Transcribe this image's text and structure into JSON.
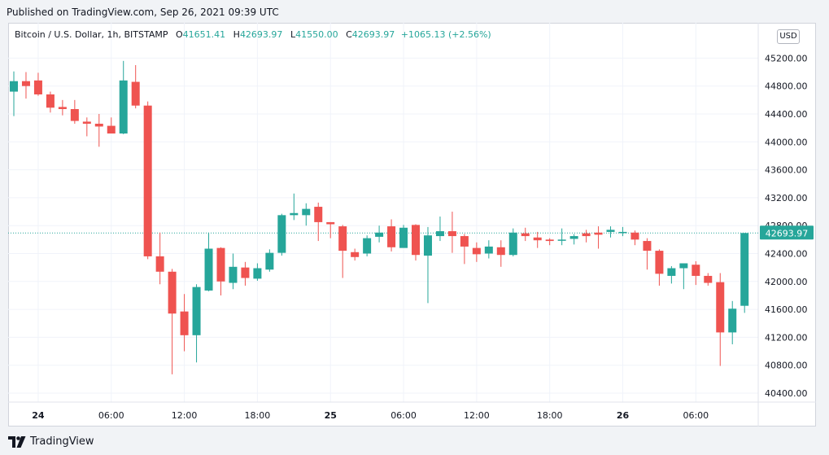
{
  "header": {
    "published": "Published on TradingView.com, Sep 26, 2021 09:39 UTC"
  },
  "legend": {
    "symbol": "Bitcoin / U.S. Dollar, 1h, BITSTAMP",
    "open_label": "O",
    "open": "41651.41",
    "high_label": "H",
    "high": "42693.97",
    "low_label": "L",
    "low": "41550.00",
    "close_label": "C",
    "close": "42693.97",
    "change": "+1065.13 (+2.56%)"
  },
  "currency": "USD",
  "footer": {
    "brand": "TradingView",
    "logo_icon": "tradingview-logo-icon"
  },
  "colors": {
    "up": "#26a69a",
    "down": "#ef5350",
    "grid": "#f0f3fa",
    "axis_text": "#131722",
    "price_line": "#26a69a"
  },
  "chart_data": {
    "type": "candlestick",
    "title": "Bitcoin / U.S. Dollar, 1h, BITSTAMP",
    "y_ticks": [
      40400,
      40800,
      41200,
      41600,
      42000,
      42400,
      42800,
      43200,
      43600,
      44000,
      44400,
      44800,
      45200
    ],
    "y_tick_labels": [
      "40400.00",
      "40800.00",
      "41200.00",
      "41600.00",
      "42000.00",
      "42400.00",
      "42800.00",
      "43200.00",
      "43600.00",
      "44000.00",
      "44400.00",
      "44800.00",
      "45200.00"
    ],
    "ylim": [
      40300,
      45500
    ],
    "x_ticks": [
      {
        "bar": 2,
        "label": "24",
        "bold": true
      },
      {
        "bar": 8,
        "label": "06:00",
        "bold": false
      },
      {
        "bar": 14,
        "label": "12:00",
        "bold": false
      },
      {
        "bar": 20,
        "label": "18:00",
        "bold": false
      },
      {
        "bar": 26,
        "label": "25",
        "bold": true
      },
      {
        "bar": 32,
        "label": "06:00",
        "bold": false
      },
      {
        "bar": 38,
        "label": "12:00",
        "bold": false
      },
      {
        "bar": 44,
        "label": "18:00",
        "bold": false
      },
      {
        "bar": 50,
        "label": "26",
        "bold": true
      },
      {
        "bar": 56,
        "label": "06:00",
        "bold": false
      }
    ],
    "last_price": 42693.97,
    "last_price_label": "42693.97",
    "candles": [
      {
        "o": 44720,
        "h": 45010,
        "l": 44370,
        "c": 44870
      },
      {
        "o": 44870,
        "h": 45000,
        "l": 44620,
        "c": 44800
      },
      {
        "o": 44880,
        "h": 44990,
        "l": 44660,
        "c": 44680
      },
      {
        "o": 44680,
        "h": 44720,
        "l": 44420,
        "c": 44490
      },
      {
        "o": 44500,
        "h": 44600,
        "l": 44380,
        "c": 44470
      },
      {
        "o": 44470,
        "h": 44600,
        "l": 44260,
        "c": 44300
      },
      {
        "o": 44290,
        "h": 44350,
        "l": 44080,
        "c": 44260
      },
      {
        "o": 44260,
        "h": 44400,
        "l": 43930,
        "c": 44220
      },
      {
        "o": 44230,
        "h": 44350,
        "l": 44120,
        "c": 44120
      },
      {
        "o": 44120,
        "h": 45160,
        "l": 44110,
        "c": 44880
      },
      {
        "o": 44860,
        "h": 45100,
        "l": 44480,
        "c": 44520
      },
      {
        "o": 44520,
        "h": 44580,
        "l": 42320,
        "c": 42360
      },
      {
        "o": 42360,
        "h": 42700,
        "l": 41960,
        "c": 42140
      },
      {
        "o": 42140,
        "h": 42180,
        "l": 40670,
        "c": 41540
      },
      {
        "o": 41570,
        "h": 41820,
        "l": 41000,
        "c": 41230
      },
      {
        "o": 41230,
        "h": 41960,
        "l": 40840,
        "c": 41920
      },
      {
        "o": 41870,
        "h": 42700,
        "l": 41860,
        "c": 42470
      },
      {
        "o": 42480,
        "h": 42490,
        "l": 41800,
        "c": 42000
      },
      {
        "o": 41980,
        "h": 42400,
        "l": 41890,
        "c": 42210
      },
      {
        "o": 42200,
        "h": 42280,
        "l": 41940,
        "c": 42050
      },
      {
        "o": 42040,
        "h": 42260,
        "l": 42010,
        "c": 42190
      },
      {
        "o": 42170,
        "h": 42460,
        "l": 42140,
        "c": 42410
      },
      {
        "o": 42410,
        "h": 42970,
        "l": 42370,
        "c": 42950
      },
      {
        "o": 42950,
        "h": 43260,
        "l": 42880,
        "c": 42980
      },
      {
        "o": 42950,
        "h": 43120,
        "l": 42800,
        "c": 43040
      },
      {
        "o": 43070,
        "h": 43130,
        "l": 42580,
        "c": 42850
      },
      {
        "o": 42850,
        "h": 42850,
        "l": 42620,
        "c": 42820
      },
      {
        "o": 42790,
        "h": 42810,
        "l": 42050,
        "c": 42440
      },
      {
        "o": 42420,
        "h": 42470,
        "l": 42300,
        "c": 42350
      },
      {
        "o": 42400,
        "h": 42660,
        "l": 42360,
        "c": 42620
      },
      {
        "o": 42640,
        "h": 42800,
        "l": 42560,
        "c": 42700
      },
      {
        "o": 42790,
        "h": 42890,
        "l": 42430,
        "c": 42490
      },
      {
        "o": 42480,
        "h": 42810,
        "l": 42490,
        "c": 42770
      },
      {
        "o": 42810,
        "h": 42820,
        "l": 42300,
        "c": 42380
      },
      {
        "o": 42370,
        "h": 42780,
        "l": 41690,
        "c": 42660
      },
      {
        "o": 42650,
        "h": 42930,
        "l": 42580,
        "c": 42720
      },
      {
        "o": 42720,
        "h": 43000,
        "l": 42410,
        "c": 42650
      },
      {
        "o": 42650,
        "h": 42680,
        "l": 42250,
        "c": 42500
      },
      {
        "o": 42480,
        "h": 42560,
        "l": 42280,
        "c": 42390
      },
      {
        "o": 42400,
        "h": 42590,
        "l": 42330,
        "c": 42500
      },
      {
        "o": 42490,
        "h": 42590,
        "l": 42210,
        "c": 42380
      },
      {
        "o": 42380,
        "h": 42760,
        "l": 42360,
        "c": 42700
      },
      {
        "o": 42690,
        "h": 42770,
        "l": 42580,
        "c": 42650
      },
      {
        "o": 42630,
        "h": 42710,
        "l": 42480,
        "c": 42590
      },
      {
        "o": 42600,
        "h": 42620,
        "l": 42520,
        "c": 42580
      },
      {
        "o": 42590,
        "h": 42760,
        "l": 42520,
        "c": 42600
      },
      {
        "o": 42610,
        "h": 42680,
        "l": 42530,
        "c": 42650
      },
      {
        "o": 42690,
        "h": 42740,
        "l": 42560,
        "c": 42650
      },
      {
        "o": 42700,
        "h": 42790,
        "l": 42470,
        "c": 42670
      },
      {
        "o": 42710,
        "h": 42790,
        "l": 42630,
        "c": 42740
      },
      {
        "o": 42710,
        "h": 42780,
        "l": 42650,
        "c": 42710
      },
      {
        "o": 42700,
        "h": 42730,
        "l": 42520,
        "c": 42600
      },
      {
        "o": 42580,
        "h": 42620,
        "l": 42170,
        "c": 42440
      },
      {
        "o": 42440,
        "h": 42460,
        "l": 41940,
        "c": 42110
      },
      {
        "o": 42080,
        "h": 42220,
        "l": 41970,
        "c": 42190
      },
      {
        "o": 42190,
        "h": 42230,
        "l": 41890,
        "c": 42260
      },
      {
        "o": 42240,
        "h": 42290,
        "l": 41950,
        "c": 42080
      },
      {
        "o": 42080,
        "h": 42120,
        "l": 41940,
        "c": 41980
      },
      {
        "o": 41990,
        "h": 42120,
        "l": 40790,
        "c": 41270
      },
      {
        "o": 41270,
        "h": 41720,
        "l": 41100,
        "c": 41610
      },
      {
        "o": 41651.41,
        "h": 42693.97,
        "l": 41550.0,
        "c": 42693.97
      }
    ]
  }
}
